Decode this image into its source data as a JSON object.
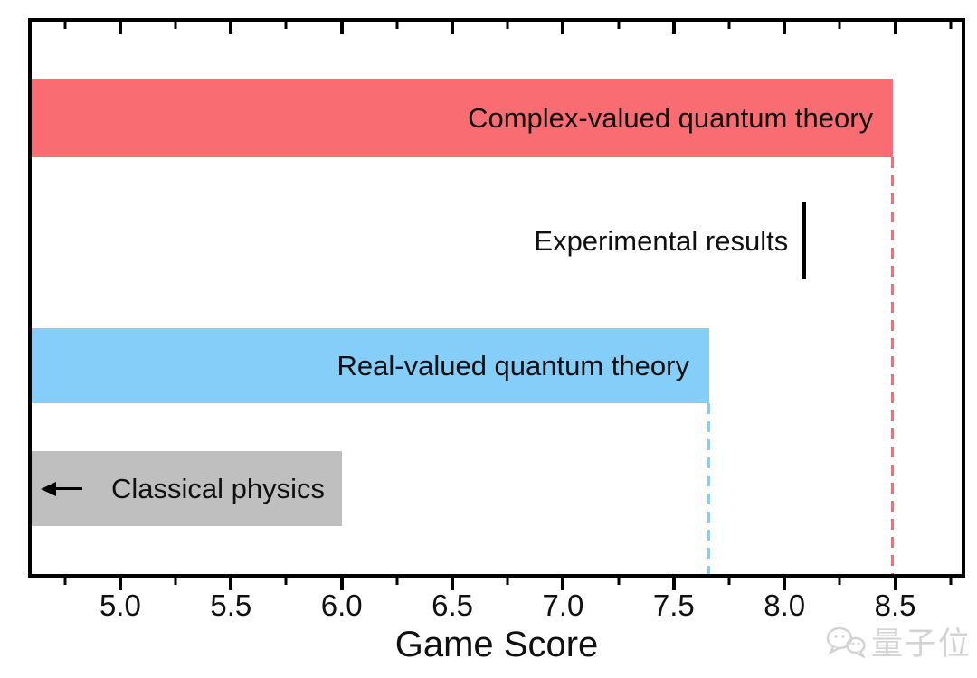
{
  "chart_data": {
    "type": "bar",
    "orientation": "horizontal",
    "title": "",
    "xlabel": "Game Score",
    "ylabel": "",
    "xlim": [
      4.6,
      8.8
    ],
    "grid": false,
    "legend": "none",
    "axis_color": "#000000",
    "x_major_ticks": [
      {
        "value": 5.0,
        "label": "5.0"
      },
      {
        "value": 5.5,
        "label": "5.5"
      },
      {
        "value": 6.0,
        "label": "6.0"
      },
      {
        "value": 6.5,
        "label": "6.5"
      },
      {
        "value": 7.0,
        "label": "7.0"
      },
      {
        "value": 7.5,
        "label": "7.5"
      },
      {
        "value": 8.0,
        "label": "8.0"
      },
      {
        "value": 8.5,
        "label": "8.5"
      }
    ],
    "x_minor_tick_values": [
      4.75,
      5.25,
      5.75,
      6.25,
      6.75,
      7.25,
      7.75,
      8.25,
      8.75
    ],
    "bars": [
      {
        "name": "complex-valued-quantum-theory-bar",
        "label": "Complex-valued quantum theory",
        "value": 8.49,
        "color": "#f96d72",
        "guide_line": true,
        "label_align": "right",
        "arrow": "none"
      },
      {
        "name": "real-valued-quantum-theory-bar",
        "label": "Real-valued quantum theory",
        "value": 7.66,
        "color": "#85cefa",
        "guide_line": true,
        "label_align": "right",
        "arrow": "none"
      },
      {
        "name": "classical-physics-bar",
        "label": "Classical physics",
        "value": 6.0,
        "color": "#bfbfbf",
        "guide_line": false,
        "label_align": "left",
        "arrow": "left"
      }
    ],
    "marker": {
      "name": "experimental-results-marker",
      "label": "Experimental results",
      "value": 8.09,
      "color": "#000000"
    }
  },
  "watermark": {
    "text": "量子位",
    "icon": "wechat-chat-bubbles-icon",
    "color": "#d3d3d3"
  }
}
